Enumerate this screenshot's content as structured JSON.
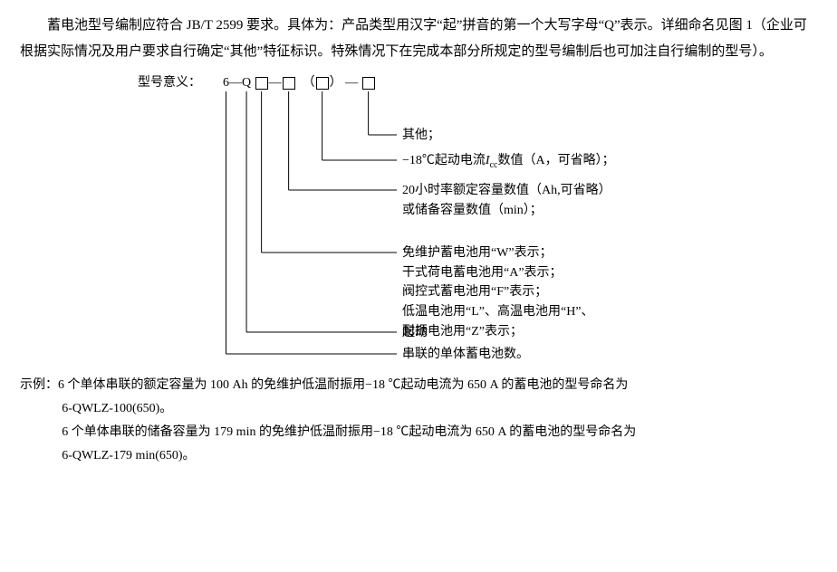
{
  "intro": "蓄电池型号编制应符合 JB/T 2599 要求。具体为：产品类型用汉字“起”拼音的第一个大写字母“Q”表示。详细命名见图 1（企业可根据实际情况及用户要求自行确定“其他”特征标识。特殊情况下在完成本部分所规定的型号编制后也可加注自行编制的型号）。",
  "diagram": {
    "label": "型号意义：",
    "slots": {
      "s1": "6",
      "s2": "—",
      "s3": "Q",
      "s4_dash": "—",
      "paren_l": "（",
      "paren_r": "）",
      "trail_dash": "—"
    },
    "descs": [
      "其他；",
      "−18℃起动电流Icc数值（A，可省略）；",
      "20小时率额定容量数值（Ah,可省略）\n或储备容量数值（min）；",
      "免维护蓄电池用“W”表示；\n干式荷电蓄电池用“A”表示；\n阀控式蓄电池用“F”表示；\n低温电池用“L”、高温电池用“H”、\n耐振电池用“Z”表示；",
      "起动",
      "串联的单体蓄电池数。"
    ]
  },
  "example_label": "示例：",
  "example1_line1": "6 个单体串联的额定容量为 100 Ah 的免维护低温耐振用−18 ℃起动电流为 650 A 的蓄电池的型号命名为",
  "example1_line2": "6-QWLZ-100(650)。",
  "example2_line1": "6 个单体串联的储备容量为 179 min 的免维护低温耐振用−18 ℃起动电流为 650 A 的蓄电池的型号命名为",
  "example2_line2": "6-QWLZ-179 min(650)。",
  "line_color": "#000000",
  "line_width": 1
}
